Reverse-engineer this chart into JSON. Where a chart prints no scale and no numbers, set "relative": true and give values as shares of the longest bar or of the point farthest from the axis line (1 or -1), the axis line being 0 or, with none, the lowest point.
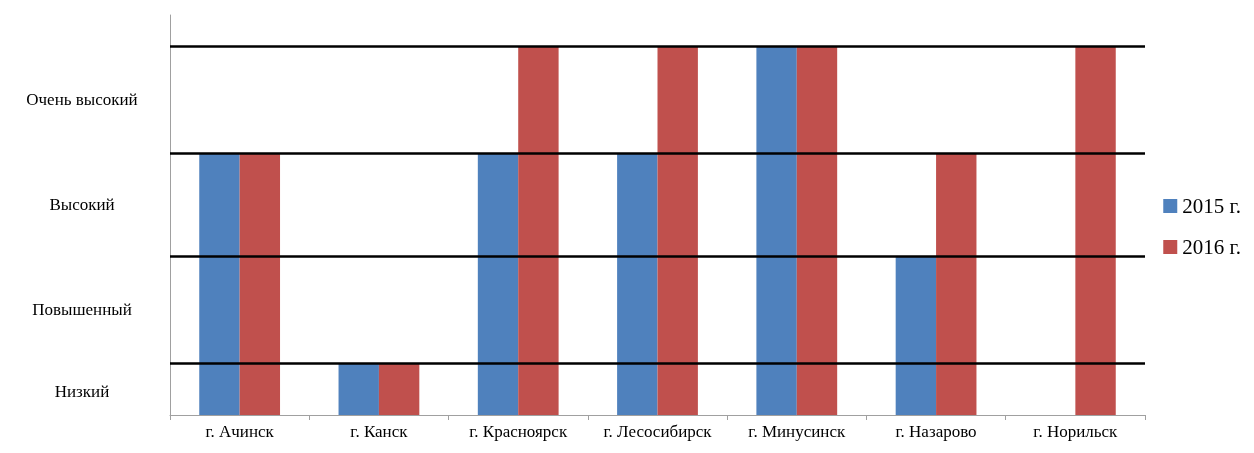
{
  "chart_data": {
    "type": "bar",
    "relative": true,
    "categories": [
      "г. Ачинск",
      "г. Канск",
      "г. Красноярск",
      "г. Лесосибирск",
      "г. Минусинск",
      "г. Назарово",
      "г. Норильск"
    ],
    "series": [
      {
        "name": "2015 г.",
        "color": "#4f81bd",
        "values": [
          0.71,
          0.14,
          0.71,
          0.71,
          1,
          0.43,
          null
        ]
      },
      {
        "name": "2016 г.",
        "color": "#c0504d",
        "values": [
          0.71,
          0.14,
          1,
          1,
          1,
          0.71,
          1
        ]
      }
    ],
    "annotations": [
      "Низкий",
      "Повышенный",
      "Высокий",
      "Очень высокий"
    ],
    "ref_lines": [
      {
        "axis": "y",
        "value": 0.14,
        "label": null,
        "color": "#000000"
      },
      {
        "axis": "y",
        "value": 0.43,
        "label": null,
        "color": "#000000"
      },
      {
        "axis": "y",
        "value": 0.71,
        "label": null,
        "color": "#000000"
      },
      {
        "axis": "y",
        "value": 1,
        "label": null,
        "color": "#000000"
      }
    ],
    "grid": false,
    "legend": "right"
  }
}
